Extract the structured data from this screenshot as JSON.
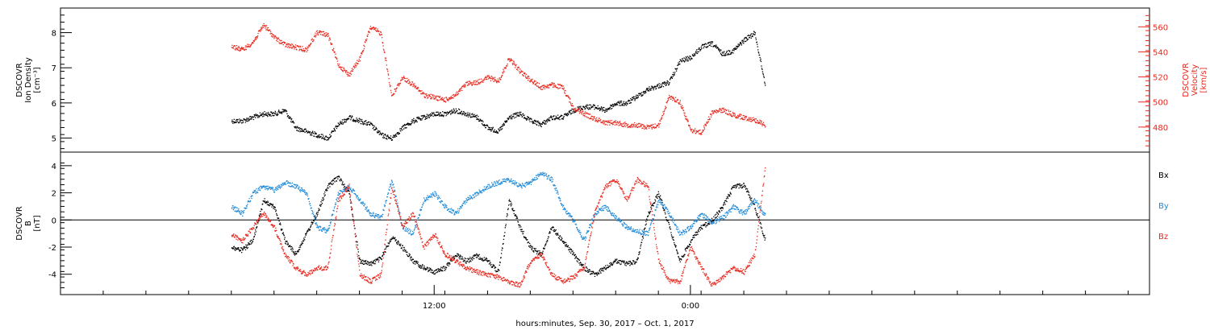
{
  "chart_data": [
    {
      "type": "scatter",
      "panel": "top",
      "ylabel_lines": [
        "DSCOVR",
        "Ion Density",
        "[cm⁻³]"
      ],
      "y2label_lines": [
        "DSCOVR",
        "Velocity",
        "[km/s]"
      ],
      "ylim": [
        4.6,
        8.7
      ],
      "y2lim": [
        460,
        575
      ],
      "yticks": [
        "5",
        "6",
        "7",
        "8"
      ],
      "y2ticks": [
        "480",
        "500",
        "520",
        "540",
        "560"
      ],
      "series": [
        {
          "name": "Ion Density",
          "color": "#000000",
          "axis": "left",
          "x": [
            0.0,
            0.5,
            1.0,
            1.5,
            2.0,
            2.5,
            3.0,
            3.5,
            4.0,
            4.5,
            5.0,
            5.5,
            6.0,
            6.5,
            7.0,
            7.5,
            8.0,
            8.5,
            9.0,
            9.5,
            10.0,
            10.5,
            11.0,
            11.5,
            12.0,
            12.5,
            13.0,
            13.5,
            14.0,
            14.5,
            15.0,
            15.5,
            16.0,
            16.5,
            17.0,
            17.5,
            18.0,
            18.5,
            19.0,
            19.5,
            20.0,
            20.5,
            21.0,
            21.5,
            22.0,
            22.5,
            23.0,
            23.5,
            24.0,
            24.5,
            25.0
          ],
          "values": [
            5.5,
            5.5,
            5.6,
            5.7,
            5.7,
            5.8,
            5.3,
            5.2,
            5.1,
            5.0,
            5.4,
            5.6,
            5.5,
            5.4,
            5.1,
            5.0,
            5.3,
            5.5,
            5.6,
            5.7,
            5.7,
            5.8,
            5.7,
            5.6,
            5.3,
            5.2,
            5.6,
            5.7,
            5.5,
            5.4,
            5.6,
            5.6,
            5.8,
            5.9,
            5.9,
            5.8,
            6.0,
            6.0,
            6.2,
            6.4,
            6.5,
            6.6,
            7.2,
            7.3,
            7.6,
            7.7,
            7.4,
            7.5,
            7.8,
            8.0,
            6.5
          ]
        },
        {
          "name": "Velocity",
          "color": "#e8281e",
          "axis": "right",
          "x": [
            0.0,
            0.5,
            1.0,
            1.5,
            2.0,
            2.5,
            3.0,
            3.5,
            4.0,
            4.5,
            5.0,
            5.5,
            6.0,
            6.5,
            7.0,
            7.5,
            8.0,
            8.5,
            9.0,
            9.5,
            10.0,
            10.5,
            11.0,
            11.5,
            12.0,
            12.5,
            13.0,
            13.5,
            14.0,
            14.5,
            15.0,
            15.5,
            16.0,
            16.5,
            17.0,
            17.5,
            18.0,
            18.5,
            19.0,
            19.5,
            20.0,
            20.5,
            21.0,
            21.5,
            22.0,
            22.5,
            23.0,
            23.5,
            24.0,
            24.5,
            25.0
          ],
          "values": [
            545,
            542,
            548,
            562,
            552,
            546,
            544,
            542,
            556,
            554,
            530,
            522,
            535,
            560,
            555,
            505,
            520,
            514,
            506,
            504,
            502,
            506,
            515,
            516,
            520,
            517,
            535,
            525,
            518,
            512,
            514,
            512,
            496,
            491,
            487,
            484,
            484,
            482,
            482,
            480,
            482,
            505,
            500,
            478,
            476,
            492,
            494,
            490,
            488,
            486,
            482
          ]
        }
      ],
      "grid": false
    },
    {
      "type": "scatter",
      "panel": "bottom",
      "ylabel_lines": [
        "DSCOVR",
        "B",
        "[nT]"
      ],
      "ylim": [
        -5.5,
        5.0
      ],
      "yticks": [
        "-4",
        "-2",
        "0",
        "2",
        "4"
      ],
      "xticks": [
        "12:00",
        "0:00"
      ],
      "xlabel": "hours:minutes, Sep. 30, 2017 – Oct. 1, 2017",
      "legend": [
        "Bx",
        "By",
        "Bz"
      ],
      "legend_placement": "right",
      "series": [
        {
          "name": "Bx",
          "color": "#000000",
          "x": [
            0.0,
            0.5,
            1.0,
            1.5,
            2.0,
            2.5,
            3.0,
            3.5,
            4.0,
            4.5,
            5.0,
            5.5,
            6.0,
            6.5,
            7.0,
            7.5,
            8.0,
            8.5,
            9.0,
            9.5,
            10.0,
            10.5,
            11.0,
            11.5,
            12.0,
            12.5,
            13.0,
            13.5,
            14.0,
            14.5,
            15.0,
            15.5,
            16.0,
            16.5,
            17.0,
            17.5,
            18.0,
            18.5,
            19.0,
            19.5,
            20.0,
            20.5,
            21.0,
            21.5,
            22.0,
            22.5,
            23.0,
            23.5,
            24.0,
            24.5,
            25.0
          ],
          "values": [
            -2.0,
            -2.2,
            -1.5,
            1.5,
            1.0,
            -1.5,
            -2.5,
            -1.0,
            0.5,
            2.5,
            3.2,
            2.0,
            -3.0,
            -3.2,
            -2.8,
            -1.2,
            -2.0,
            -3.0,
            -3.5,
            -3.8,
            -3.5,
            -2.5,
            -3.0,
            -2.6,
            -3.0,
            -3.8,
            1.5,
            -0.5,
            -2.0,
            -2.5,
            -0.5,
            -1.5,
            -2.5,
            -3.5,
            -4.0,
            -3.5,
            -3.0,
            -3.2,
            -3.0,
            0.5,
            2.0,
            -0.5,
            -3.0,
            -1.5,
            -0.5,
            0.0,
            1.0,
            2.5,
            2.6,
            1.0,
            -1.5
          ]
        },
        {
          "name": "By",
          "color": "#1c88d8",
          "x": [
            0.0,
            0.5,
            1.0,
            1.5,
            2.0,
            2.5,
            3.0,
            3.5,
            4.0,
            4.5,
            5.0,
            5.5,
            6.0,
            6.5,
            7.0,
            7.5,
            8.0,
            8.5,
            9.0,
            9.5,
            10.0,
            10.5,
            11.0,
            11.5,
            12.0,
            12.5,
            13.0,
            13.5,
            14.0,
            14.5,
            15.0,
            15.5,
            16.0,
            16.5,
            17.0,
            17.5,
            18.0,
            18.5,
            19.0,
            19.5,
            20.0,
            20.5,
            21.0,
            21.5,
            22.0,
            22.5,
            23.0,
            23.5,
            24.0,
            24.5,
            25.0
          ],
          "values": [
            1.0,
            0.5,
            2.0,
            2.5,
            2.2,
            2.8,
            2.5,
            2.0,
            -0.5,
            -0.8,
            2.0,
            2.5,
            1.5,
            0.5,
            0.2,
            3.0,
            -0.5,
            -1.0,
            1.5,
            2.0,
            1.0,
            0.5,
            1.5,
            2.0,
            2.5,
            2.8,
            3.0,
            2.5,
            2.8,
            3.5,
            3.0,
            1.0,
            0.0,
            -1.5,
            0.5,
            1.0,
            0.2,
            -0.5,
            -0.8,
            -1.0,
            1.5,
            0.5,
            -1.0,
            -0.5,
            0.5,
            -0.2,
            0.2,
            1.0,
            0.5,
            1.5,
            0.3
          ]
        },
        {
          "name": "Bz",
          "color": "#e8281e",
          "x": [
            0.0,
            0.5,
            1.0,
            1.5,
            2.0,
            2.5,
            3.0,
            3.5,
            4.0,
            4.5,
            5.0,
            5.5,
            6.0,
            6.5,
            7.0,
            7.5,
            8.0,
            8.5,
            9.0,
            9.5,
            10.0,
            10.5,
            11.0,
            11.5,
            12.0,
            12.5,
            13.0,
            13.5,
            14.0,
            14.5,
            15.0,
            15.5,
            16.0,
            16.5,
            17.0,
            17.5,
            18.0,
            18.5,
            19.0,
            19.5,
            20.0,
            20.5,
            21.0,
            21.5,
            22.0,
            22.5,
            23.0,
            23.5,
            24.0,
            24.5,
            25.0
          ],
          "values": [
            -1.0,
            -1.5,
            -0.5,
            0.5,
            -0.5,
            -2.5,
            -3.5,
            -4.0,
            -3.5,
            -3.5,
            1.5,
            2.5,
            -4.0,
            -4.5,
            -4.0,
            2.5,
            -0.5,
            0.5,
            -2.0,
            -1.0,
            -2.5,
            -3.0,
            -3.5,
            -3.8,
            -4.0,
            -4.2,
            -4.5,
            -4.8,
            -3.0,
            -2.5,
            -4.0,
            -4.5,
            -4.2,
            -3.5,
            0.5,
            2.5,
            3.0,
            1.5,
            3.0,
            2.5,
            -3.0,
            -4.5,
            -4.5,
            -2.0,
            -3.5,
            -4.8,
            -4.2,
            -3.5,
            -3.8,
            -2.5,
            4.0
          ]
        }
      ],
      "grid": false
    }
  ]
}
